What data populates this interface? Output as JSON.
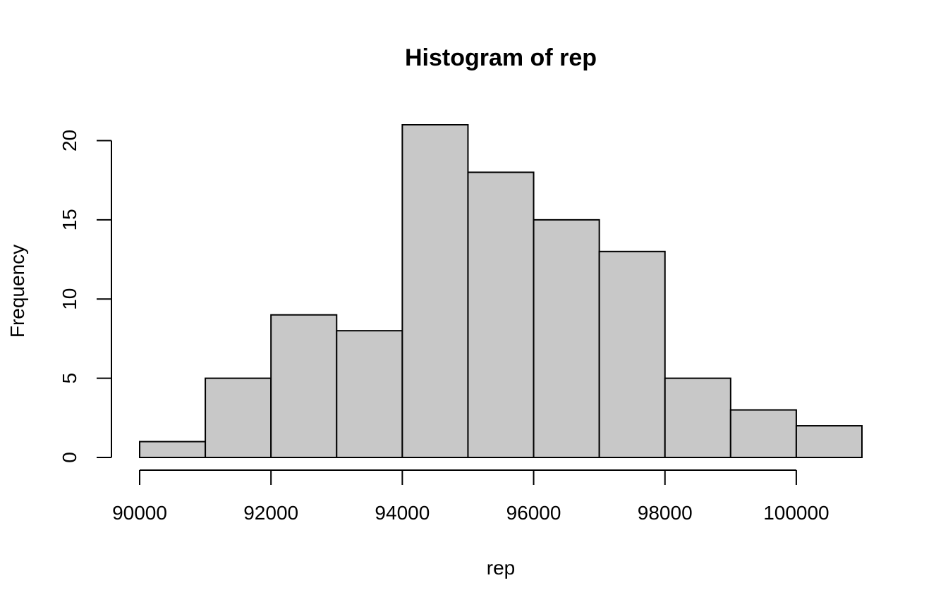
{
  "chart_data": {
    "type": "bar",
    "subtype": "histogram",
    "title": "Histogram of rep",
    "xlabel": "rep",
    "ylabel": "Frequency",
    "bins": [
      {
        "start": 90000,
        "end": 91000,
        "count": 1
      },
      {
        "start": 91000,
        "end": 92000,
        "count": 5
      },
      {
        "start": 92000,
        "end": 93000,
        "count": 9
      },
      {
        "start": 93000,
        "end": 94000,
        "count": 8
      },
      {
        "start": 94000,
        "end": 95000,
        "count": 21
      },
      {
        "start": 95000,
        "end": 96000,
        "count": 18
      },
      {
        "start": 96000,
        "end": 97000,
        "count": 15
      },
      {
        "start": 97000,
        "end": 98000,
        "count": 13
      },
      {
        "start": 98000,
        "end": 99000,
        "count": 5
      },
      {
        "start": 99000,
        "end": 100000,
        "count": 3
      },
      {
        "start": 100000,
        "end": 101000,
        "count": 2
      }
    ],
    "xticks": [
      {
        "value": 90000,
        "label": "90000"
      },
      {
        "value": 92000,
        "label": "92000"
      },
      {
        "value": 94000,
        "label": "94000"
      },
      {
        "value": 96000,
        "label": "96000"
      },
      {
        "value": 98000,
        "label": "98000"
      },
      {
        "value": 100000,
        "label": "100000"
      }
    ],
    "yticks": [
      {
        "value": 0,
        "label": "0"
      },
      {
        "value": 5,
        "label": "5"
      },
      {
        "value": 10,
        "label": "10"
      },
      {
        "value": 15,
        "label": "15"
      },
      {
        "value": 20,
        "label": "20"
      }
    ],
    "xlim": [
      90000,
      101000
    ],
    "ylim": [
      0,
      21
    ],
    "grid": false,
    "bar_fill": "#c8c8c8",
    "bar_stroke": "#000000"
  }
}
